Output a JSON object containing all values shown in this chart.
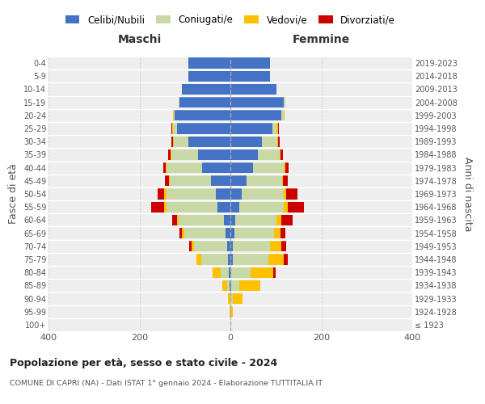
{
  "age_groups": [
    "100+",
    "95-99",
    "90-94",
    "85-89",
    "80-84",
    "75-79",
    "70-74",
    "65-69",
    "60-64",
    "55-59",
    "50-54",
    "45-49",
    "40-44",
    "35-39",
    "30-34",
    "25-29",
    "20-24",
    "15-19",
    "10-14",
    "5-9",
    "0-4"
  ],
  "birth_years": [
    "≤ 1923",
    "1924-1928",
    "1929-1933",
    "1934-1938",
    "1939-1943",
    "1944-1948",
    "1949-1953",
    "1954-1958",
    "1959-1963",
    "1964-1968",
    "1969-1973",
    "1974-1978",
    "1979-1983",
    "1984-1988",
    "1989-1993",
    "1994-1998",
    "1999-2003",
    "2004-2008",
    "2009-2013",
    "2014-2018",
    "2019-2023"
  ],
  "maschi_celibi": [
    0,
    0,
    0,
    2,
    3,
    6,
    8,
    10,
    15,
    28,
    32,
    42,
    62,
    72,
    92,
    118,
    122,
    112,
    107,
    92,
    92
  ],
  "maschi_coniugati": [
    0,
    0,
    0,
    5,
    18,
    58,
    72,
    92,
    98,
    112,
    108,
    92,
    78,
    58,
    33,
    8,
    3,
    2,
    0,
    0,
    0
  ],
  "maschi_vedovi": [
    0,
    2,
    5,
    10,
    18,
    10,
    5,
    5,
    5,
    5,
    5,
    2,
    2,
    2,
    2,
    2,
    2,
    0,
    0,
    0,
    0
  ],
  "maschi_divorziati": [
    0,
    0,
    0,
    0,
    0,
    0,
    5,
    5,
    10,
    30,
    15,
    8,
    5,
    5,
    3,
    2,
    0,
    0,
    0,
    0,
    0
  ],
  "femmine_nubili": [
    0,
    0,
    0,
    2,
    2,
    5,
    5,
    8,
    10,
    20,
    25,
    35,
    50,
    60,
    70,
    92,
    112,
    118,
    102,
    87,
    87
  ],
  "femmine_coniugate": [
    0,
    0,
    5,
    18,
    42,
    78,
    82,
    88,
    92,
    98,
    92,
    78,
    68,
    48,
    33,
    10,
    5,
    2,
    0,
    0,
    0
  ],
  "femmine_vedove": [
    0,
    5,
    22,
    45,
    50,
    35,
    25,
    15,
    10,
    8,
    5,
    3,
    2,
    2,
    2,
    2,
    2,
    0,
    0,
    0,
    0
  ],
  "femmine_divorziate": [
    0,
    0,
    0,
    0,
    5,
    8,
    10,
    10,
    25,
    35,
    25,
    10,
    8,
    5,
    3,
    2,
    0,
    0,
    0,
    0,
    0
  ],
  "colors": {
    "celibi_nubili": "#4472c4",
    "coniugati": "#c8d9a5",
    "vedovi": "#ffc000",
    "divorziati": "#cc0000"
  },
  "xlim": 400,
  "title": "Popolazione per età, sesso e stato civile - 2024",
  "subtitle": "COMUNE DI CAPRI (NA) - Dati ISTAT 1° gennaio 2024 - Elaborazione TUTTITALIA.IT",
  "ylabel_left": "Fasce di età",
  "ylabel_right": "Anni di nascita",
  "label_maschi": "Maschi",
  "label_femmine": "Femmine",
  "bg_color": "#eeeeee"
}
